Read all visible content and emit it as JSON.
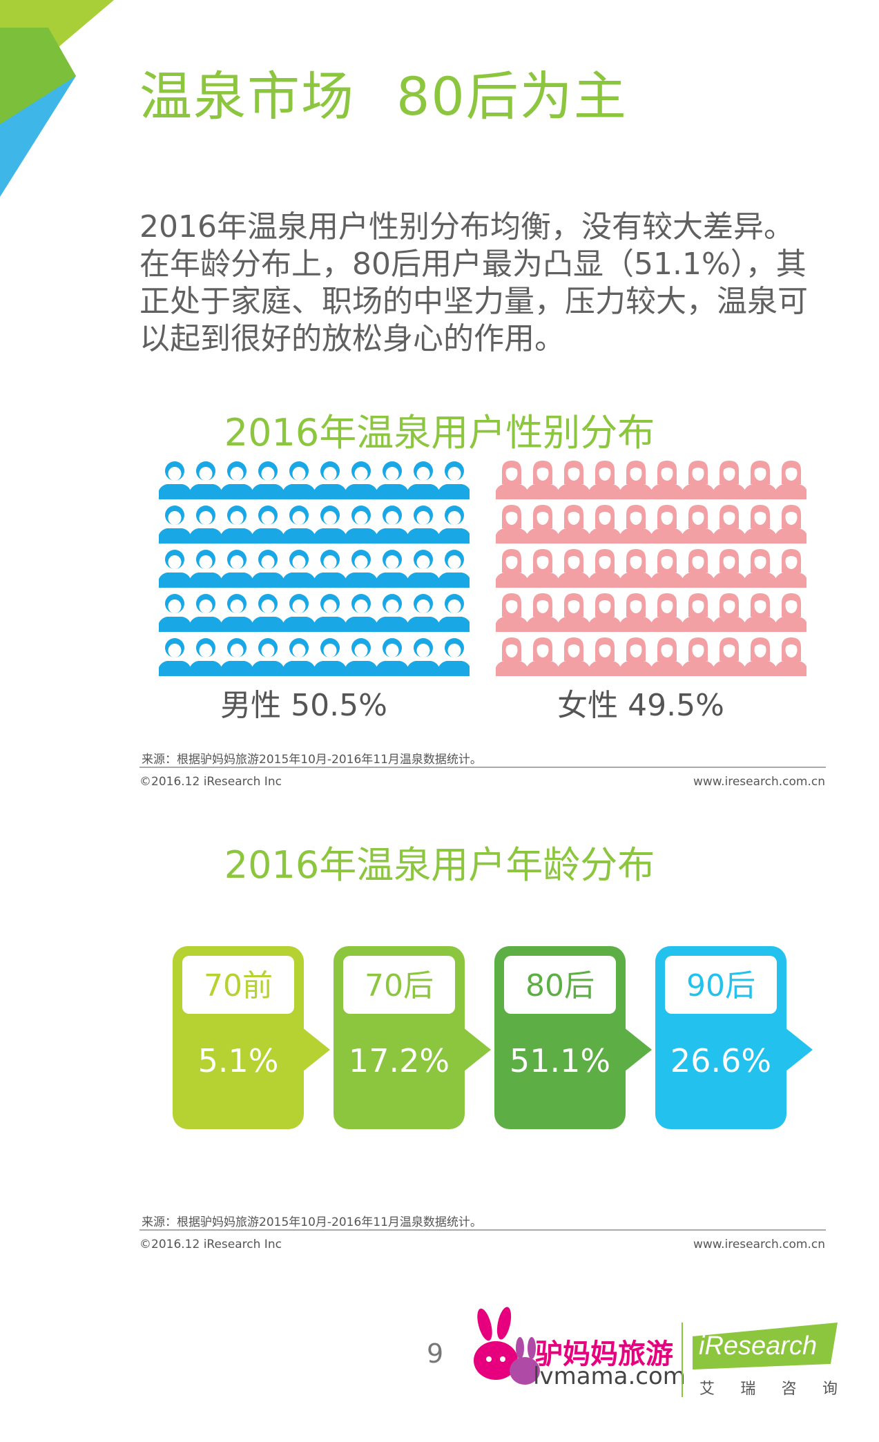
{
  "title": {
    "part1": "温泉市场",
    "part2": "80后为主"
  },
  "intro": "2016年温泉用户性别分布均衡，没有较大差异。在年龄分布上，80后用户最为凸显（51.1%），其正处于家庭、职场的中坚力量，压力较大，温泉可以起到很好的放松身心的作用。",
  "gender_chart": {
    "title": "2016年温泉用户性别分布",
    "male_label": "男性 50.5%",
    "female_label": "女性 49.5%",
    "source": "来源：根据驴妈妈旅游2015年10月-2016年11月温泉数据统计。",
    "copyright": "©2016.12 iResearch Inc",
    "website": "www.iresearch.com.cn"
  },
  "age_chart": {
    "title": "2016年温泉用户年龄分布",
    "source": "来源：根据驴妈妈旅游2015年10月-2016年11月温泉数据统计。",
    "copyright": "©2016.12 iResearch Inc",
    "website": "www.iresearch.com.cn"
  },
  "chart_data": [
    {
      "type": "pictograph",
      "title": "2016年温泉用户性别分布",
      "categories": [
        "男性",
        "女性"
      ],
      "values": [
        50.5,
        49.5
      ],
      "unit": "%",
      "colors": {
        "男性": "#1aa7e6",
        "女性": "#f2a0a3"
      }
    },
    {
      "type": "bar",
      "title": "2016年温泉用户年龄分布",
      "categories": [
        "70前",
        "70后",
        "80后",
        "90后"
      ],
      "values": [
        5.1,
        17.2,
        51.1,
        26.6
      ],
      "value_labels": [
        "5.1%",
        "17.2%",
        "51.1%",
        "26.6%"
      ],
      "unit": "%",
      "colors": [
        "#b5d232",
        "#8cc63f",
        "#5daf45",
        "#22c1ee"
      ]
    }
  ],
  "footer": {
    "page_number": "9",
    "lvmama_cn": "驴妈妈旅游",
    "lvmama_en": "lvmama.com",
    "iresearch_en": "iResearch",
    "iresearch_cn": [
      "艾",
      "瑞",
      "咨",
      "询"
    ]
  },
  "colors": {
    "accent_green": "#8cc63f",
    "male_blue": "#1aa7e6",
    "female_pink": "#f2a0a3",
    "lvmama_pink": "#e6007e"
  },
  "icons": [
    "male-person-icon",
    "female-person-icon",
    "donkey-logo-icon"
  ]
}
